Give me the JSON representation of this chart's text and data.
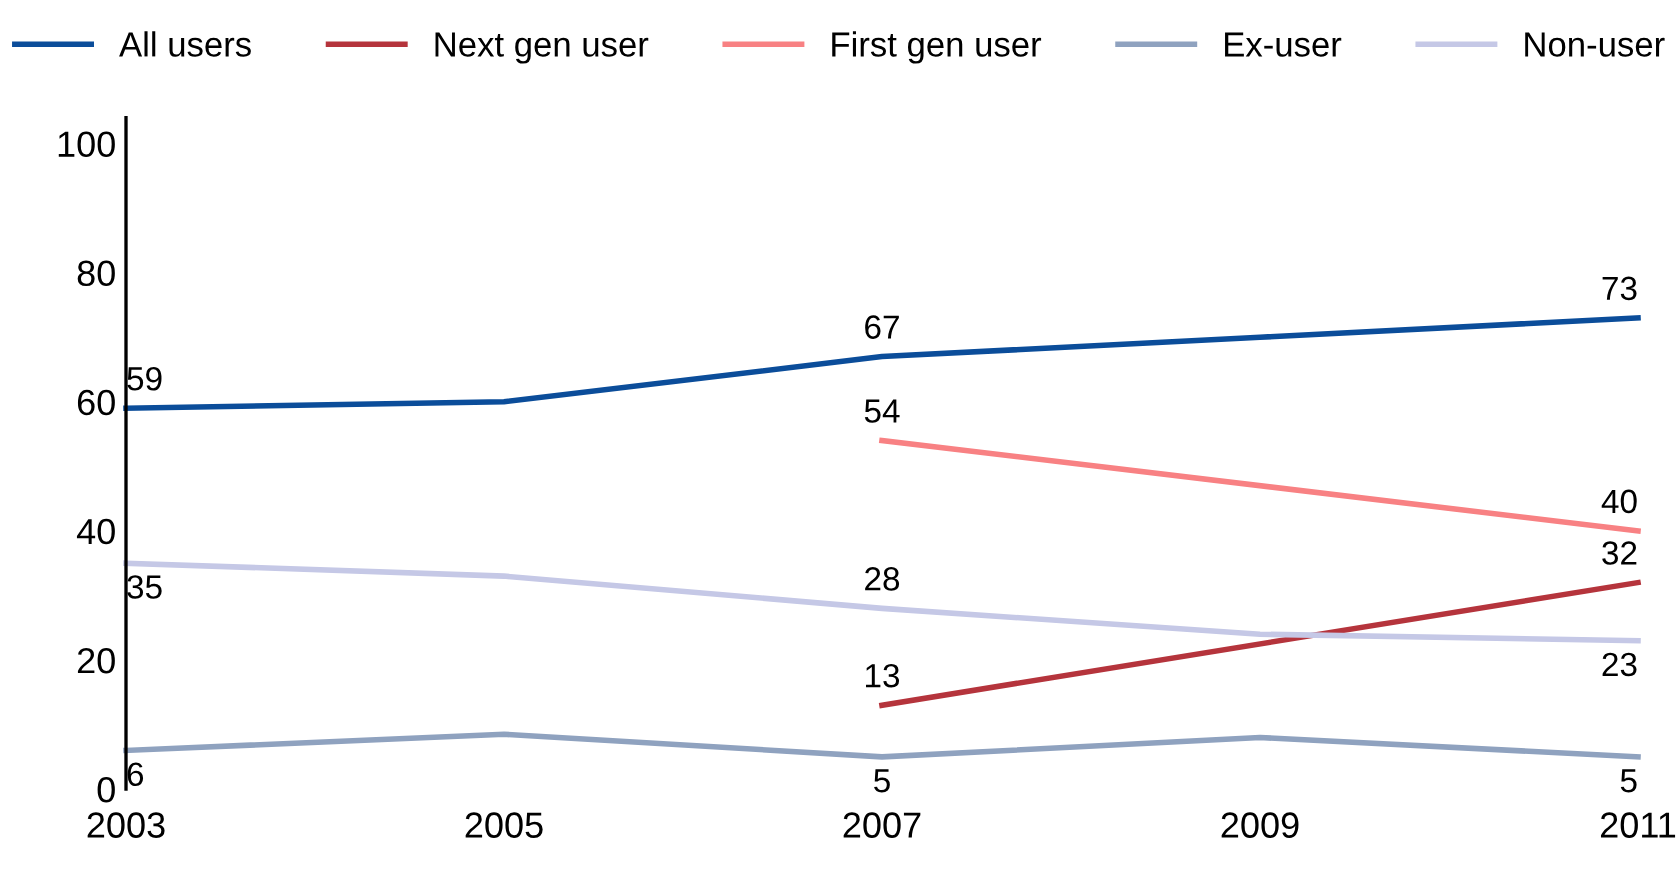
{
  "chart_data": {
    "type": "line",
    "xlim": [
      2003,
      2011
    ],
    "xticks": [
      2003,
      2005,
      2007,
      2009,
      2011
    ],
    "ylim": [
      0,
      104
    ],
    "yticks": [
      0,
      20,
      40,
      60,
      80,
      100
    ],
    "grid": false,
    "legend": "top",
    "marker": "none",
    "line_style": "solid",
    "series": [
      {
        "name": "All users",
        "color": "#0b4d9a",
        "x": [
          2003,
          2005,
          2007,
          2009,
          2011
        ],
        "values": [
          59,
          60,
          67,
          70,
          73
        ],
        "value_labels": [
          "59",
          null,
          "67",
          null,
          "73"
        ]
      },
      {
        "name": "Next gen user",
        "color": "#b5343c",
        "x": [
          2007,
          2011
        ],
        "values": [
          13,
          32
        ],
        "value_labels": [
          "13",
          "32"
        ]
      },
      {
        "name": "First gen user",
        "color": "#f88183",
        "x": [
          2007,
          2011
        ],
        "values": [
          54,
          40
        ],
        "value_labels": [
          "54",
          "40"
        ]
      },
      {
        "name": "Ex-user",
        "color": "#8fa2bf",
        "x": [
          2003,
          2005,
          2007,
          2009,
          2011
        ],
        "values": [
          6,
          8.5,
          5,
          8,
          5
        ],
        "value_labels": [
          "6",
          null,
          "5",
          null,
          "5"
        ]
      },
      {
        "name": "Non-user",
        "color": "#c5c8e6",
        "x": [
          2003,
          2005,
          2007,
          2009,
          2011
        ],
        "values": [
          35,
          33,
          28,
          24,
          23
        ],
        "value_labels": [
          "35",
          null,
          "28",
          null,
          "23"
        ]
      }
    ]
  }
}
